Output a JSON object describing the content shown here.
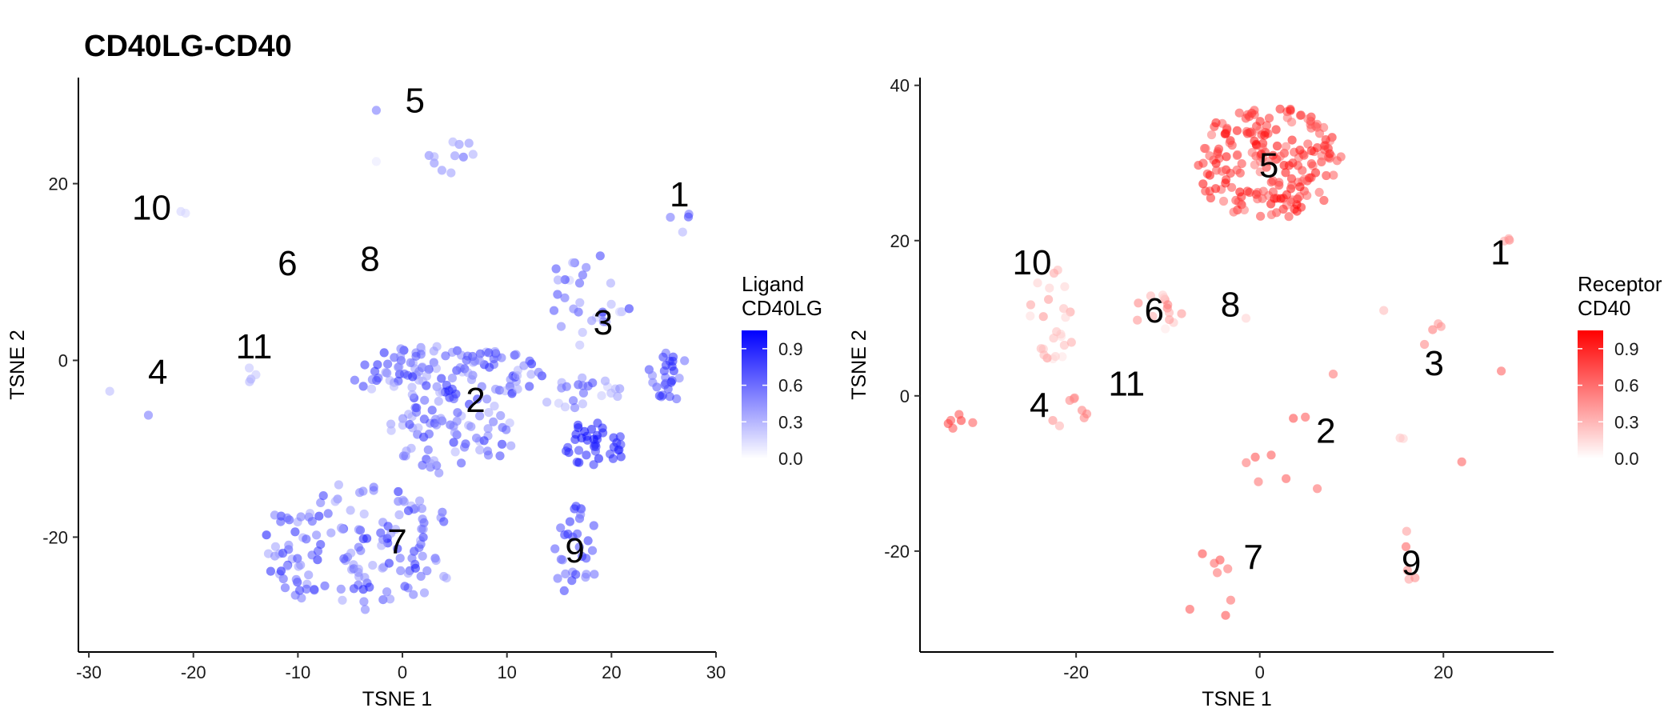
{
  "title": "CD40LG-CD40",
  "chart_data": [
    {
      "type": "scatter",
      "panel": "ligand",
      "xlabel": "TSNE 1",
      "ylabel": "TSNE 2",
      "xlim": [
        -31,
        30
      ],
      "ylim": [
        -33,
        32
      ],
      "xticks": [
        -30,
        -20,
        -10,
        0,
        10,
        20,
        30
      ],
      "xtick_labels": [
        "-30",
        "-20",
        "-10",
        "0",
        "10",
        "20",
        "30"
      ],
      "yticks": [
        -20,
        0,
        20
      ],
      "ytick_labels": [
        "-20",
        "0",
        "20"
      ],
      "legend": {
        "title_line1": "Ligand",
        "title_line2": "CD40LG",
        "ticks": [
          0.0,
          0.3,
          0.6,
          0.9
        ],
        "tick_labels": [
          "0.0",
          "0.3",
          "0.6",
          "0.9"
        ],
        "max": 1.05,
        "low_color": "#ffffff",
        "high_color": "#0000ff",
        "position": "right"
      },
      "cluster_labels": [
        {
          "text": "1",
          "x": 26.5,
          "y": 18.8
        },
        {
          "text": "2",
          "x": 7.0,
          "y": -4.5
        },
        {
          "text": "3",
          "x": 19.2,
          "y": 4.3
        },
        {
          "text": "4",
          "x": -23.4,
          "y": -1.3
        },
        {
          "text": "5",
          "x": 1.2,
          "y": 29.4
        },
        {
          "text": "6",
          "x": -11.0,
          "y": 11.0
        },
        {
          "text": "7",
          "x": -0.5,
          "y": -20.5
        },
        {
          "text": "8",
          "x": -3.1,
          "y": 11.5
        },
        {
          "text": "9",
          "x": 16.5,
          "y": -21.5
        },
        {
          "text": "10",
          "x": -24.0,
          "y": 17.3
        },
        {
          "text": "11",
          "x": -14.2,
          "y": 1.6
        }
      ],
      "clusters": [
        {
          "cx": -4,
          "cy": -21,
          "rx": 9.5,
          "ry": 7.5,
          "n": 150,
          "seed": 11,
          "lo": 0.35,
          "hi": 1.0
        },
        {
          "cx": 5,
          "cy": -8.5,
          "rx": 6.5,
          "ry": 4.5,
          "n": 70,
          "seed": 12,
          "lo": 0.3,
          "hi": 1.0
        },
        {
          "cx": 4,
          "cy": -1.5,
          "rx": 9.5,
          "ry": 3.2,
          "n": 120,
          "seed": 13,
          "lo": 0.3,
          "hi": 1.0
        },
        {
          "cx": 18.5,
          "cy": -9.5,
          "rx": 3.2,
          "ry": 2.6,
          "n": 38,
          "seed": 14,
          "lo": 0.8,
          "hi": 1.05
        },
        {
          "cx": 17,
          "cy": -3.5,
          "rx": 4,
          "ry": 2.4,
          "n": 22,
          "seed": 15,
          "lo": 0.2,
          "hi": 0.8
        },
        {
          "cx": 18,
          "cy": 7.0,
          "rx": 4.5,
          "ry": 5.5,
          "n": 30,
          "seed": 16,
          "lo": 0.2,
          "hi": 0.9
        },
        {
          "cx": 25.5,
          "cy": -1.5,
          "rx": 2,
          "ry": 3.2,
          "n": 26,
          "seed": 17,
          "lo": 0.5,
          "hi": 1.0
        },
        {
          "cx": 16.5,
          "cy": -21.5,
          "rx": 2.2,
          "ry": 5.5,
          "n": 30,
          "seed": 18,
          "lo": 0.5,
          "hi": 0.9
        },
        {
          "cx": 4.5,
          "cy": 24.0,
          "rx": 3.5,
          "ry": 2.8,
          "n": 11,
          "seed": 19,
          "lo": 0.3,
          "hi": 0.7
        },
        {
          "cx": -14.5,
          "cy": -1.5,
          "rx": 1.0,
          "ry": 1.0,
          "n": 4,
          "seed": 20,
          "lo": 0.2,
          "hi": 0.5
        },
        {
          "cx": -2.5,
          "cy": 28.3,
          "rx": 0.3,
          "ry": 0.3,
          "n": 1,
          "seed": 21,
          "lo": 0.6,
          "hi": 0.6
        },
        {
          "cx": -28.0,
          "cy": -3.5,
          "rx": 0.2,
          "ry": 0.2,
          "n": 1,
          "seed": 22,
          "lo": 0.3,
          "hi": 0.3
        },
        {
          "cx": -24.3,
          "cy": -6.2,
          "rx": 0.2,
          "ry": 0.2,
          "n": 1,
          "seed": 23,
          "lo": 0.6,
          "hi": 0.6
        },
        {
          "cx": -21.0,
          "cy": 16.5,
          "rx": 0.4,
          "ry": 0.4,
          "n": 2,
          "seed": 24,
          "lo": 0.15,
          "hi": 0.3
        },
        {
          "cx": -2.5,
          "cy": 22.5,
          "rx": 0.2,
          "ry": 0.2,
          "n": 1,
          "seed": 25,
          "lo": 0.1,
          "hi": 0.1
        },
        {
          "cx": 26.5,
          "cy": 16.5,
          "rx": 1.0,
          "ry": 5.0,
          "n": 4,
          "seed": 26,
          "lo": 0.3,
          "hi": 0.9
        }
      ]
    },
    {
      "type": "scatter",
      "panel": "receptor",
      "xlabel": "TSNE 1",
      "ylabel": "TSNE 2",
      "xlim": [
        -37,
        32
      ],
      "ylim": [
        -33,
        41
      ],
      "xticks": [
        -20,
        0,
        20
      ],
      "xtick_labels": [
        "-20",
        "0",
        "20"
      ],
      "yticks": [
        -20,
        0,
        20,
        40
      ],
      "ytick_labels": [
        "-20",
        "0",
        "20",
        "40"
      ],
      "legend": {
        "title_line1": "Receptor",
        "title_line2": "CD40",
        "ticks": [
          0.0,
          0.3,
          0.6,
          0.9
        ],
        "tick_labels": [
          "0.0",
          "0.3",
          "0.6",
          "0.9"
        ],
        "max": 1.05,
        "low_color": "#ffffff",
        "high_color": "#ff0000",
        "position": "right"
      },
      "cluster_labels": [
        {
          "text": "1",
          "x": 26.2,
          "y": 18.5
        },
        {
          "text": "2",
          "x": 7.2,
          "y": -4.5
        },
        {
          "text": "3",
          "x": 19.0,
          "y": 4.2
        },
        {
          "text": "4",
          "x": -24.0,
          "y": -1.2
        },
        {
          "text": "5",
          "x": 1.0,
          "y": 29.7
        },
        {
          "text": "6",
          "x": -11.5,
          "y": 11.0
        },
        {
          "text": "7",
          "x": -0.7,
          "y": -20.8
        },
        {
          "text": "8",
          "x": -3.2,
          "y": 11.8
        },
        {
          "text": "9",
          "x": 16.5,
          "y": -21.5
        },
        {
          "text": "10",
          "x": -24.8,
          "y": 17.2
        },
        {
          "text": "11",
          "x": -14.5,
          "y": 1.6
        }
      ],
      "clusters": [
        {
          "cx": 1.0,
          "cy": 30.0,
          "rx": 8.0,
          "ry": 7.5,
          "n": 200,
          "seed": 31,
          "lo": 0.55,
          "hi": 1.05
        },
        {
          "cx": -22.5,
          "cy": 10.5,
          "rx": 2.5,
          "ry": 7.0,
          "n": 25,
          "seed": 32,
          "lo": 0.1,
          "hi": 0.5
        },
        {
          "cx": -20.5,
          "cy": -2.5,
          "rx": 2.5,
          "ry": 2.5,
          "n": 8,
          "seed": 33,
          "lo": 0.3,
          "hi": 0.6
        },
        {
          "cx": -32.0,
          "cy": -3.5,
          "rx": 2.0,
          "ry": 1.2,
          "n": 6,
          "seed": 34,
          "lo": 0.7,
          "hi": 0.9
        },
        {
          "cx": -11.0,
          "cy": 10.5,
          "rx": 3.5,
          "ry": 2.5,
          "n": 14,
          "seed": 35,
          "lo": 0.1,
          "hi": 0.6
        },
        {
          "cx": -5.5,
          "cy": -25.0,
          "rx": 2.5,
          "ry": 5.0,
          "n": 8,
          "seed": 36,
          "lo": 0.6,
          "hi": 0.8
        },
        {
          "cx": 3.0,
          "cy": -8.0,
          "rx": 4.5,
          "ry": 6.0,
          "n": 8,
          "seed": 37,
          "lo": 0.6,
          "hi": 0.8
        },
        {
          "cx": 16.5,
          "cy": -20.0,
          "rx": 1.5,
          "ry": 4.0,
          "n": 5,
          "seed": 38,
          "lo": 0.4,
          "hi": 0.7
        },
        {
          "cx": 17.5,
          "cy": 8.5,
          "rx": 2.5,
          "ry": 2.0,
          "n": 4,
          "seed": 39,
          "lo": 0.3,
          "hi": 0.6
        },
        {
          "cx": 27.5,
          "cy": 20.5,
          "rx": 1.5,
          "ry": 0.8,
          "n": 3,
          "seed": 40,
          "lo": 0.4,
          "hi": 0.6
        },
        {
          "cx": 26.3,
          "cy": 3.2,
          "rx": 0.2,
          "ry": 0.2,
          "n": 1,
          "seed": 41,
          "lo": 0.7,
          "hi": 0.7
        },
        {
          "cx": 22.0,
          "cy": -8.5,
          "rx": 0.2,
          "ry": 0.2,
          "n": 1,
          "seed": 42,
          "lo": 0.7,
          "hi": 0.7
        },
        {
          "cx": 15.0,
          "cy": -5.5,
          "rx": 1.2,
          "ry": 0.8,
          "n": 2,
          "seed": 43,
          "lo": 0.1,
          "hi": 0.3
        },
        {
          "cx": 13.5,
          "cy": 11.0,
          "rx": 0.2,
          "ry": 0.2,
          "n": 1,
          "seed": 44,
          "lo": 0.3,
          "hi": 0.3
        },
        {
          "cx": 8.0,
          "cy": 2.8,
          "rx": 0.2,
          "ry": 0.2,
          "n": 1,
          "seed": 45,
          "lo": 0.6,
          "hi": 0.6
        },
        {
          "cx": -1.5,
          "cy": 10.0,
          "rx": 0.2,
          "ry": 0.2,
          "n": 1,
          "seed": 46,
          "lo": 0.2,
          "hi": 0.2
        }
      ]
    }
  ]
}
